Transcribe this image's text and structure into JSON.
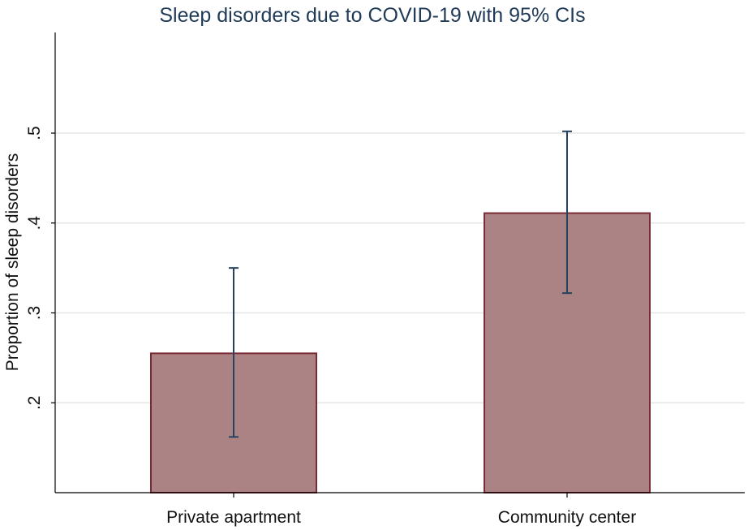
{
  "chart_data": {
    "type": "bar",
    "title": "Sleep disorders due to COVID-19 with 95% CIs",
    "xlabel": "",
    "ylabel": "Proportion of sleep disorders",
    "categories": [
      "Private apartment",
      "Community center"
    ],
    "values": [
      0.255,
      0.411
    ],
    "ci_lower": [
      0.162,
      0.322
    ],
    "ci_upper": [
      0.35,
      0.502
    ],
    "y_ticks": [
      0.2,
      0.3,
      0.4,
      0.5
    ],
    "y_tick_labels": [
      ".2",
      ".3",
      ".4",
      ".5"
    ],
    "ylim": [
      0.1,
      0.612
    ],
    "bar_base": 0.1,
    "grid": true,
    "legend": "none",
    "colors": {
      "bar_fill": "#ac8384",
      "bar_edge": "#7a2a33",
      "ci": "#25425e",
      "grid": "#e6e6e6",
      "title": "#1f3b57"
    }
  }
}
